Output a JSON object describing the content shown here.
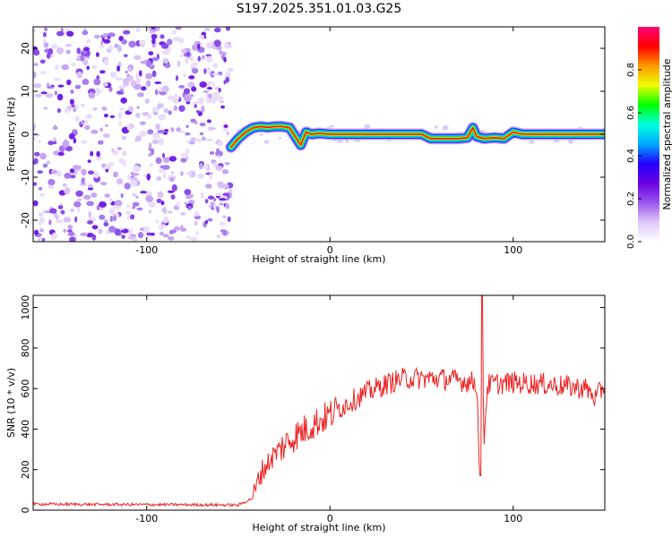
{
  "title": "S197.2025.351.01.03.G25",
  "chart_data": [
    {
      "type": "heatmap",
      "xlabel": "Height of straight line (km)",
      "ylabel": "Frequency (Hz)",
      "xlim": [
        -162,
        150
      ],
      "ylim": [
        -25,
        25
      ],
      "xticks": [
        -100,
        0,
        100
      ],
      "yticks": [
        -20,
        -10,
        0,
        10,
        20
      ],
      "xtick_labels": [
        "-100",
        "0",
        "100"
      ],
      "ytick_labels": [
        "-20",
        "-10",
        "0",
        "10",
        "20"
      ],
      "noise_region_x": [
        -162,
        -54
      ],
      "signal_track": {
        "x": [
          -54,
          -50,
          -46,
          -42,
          -38,
          -34,
          -30,
          -26,
          -22,
          -19,
          -16,
          -13,
          -10,
          -6,
          0,
          20,
          40,
          50,
          55,
          70,
          75,
          78,
          80,
          84,
          90,
          95,
          100,
          105,
          120,
          150
        ],
        "freq": [
          -3,
          -1,
          0.5,
          1.5,
          1.8,
          1.6,
          1.8,
          1.8,
          1.5,
          -0.5,
          -2.5,
          0.5,
          0,
          0.2,
          0,
          0,
          0,
          0,
          -1,
          -1,
          -0.8,
          1.5,
          -0.5,
          -1,
          -0.8,
          -1,
          0.5,
          0,
          0,
          0
        ]
      },
      "colorbar": {
        "label": "Normalized spectral amplitude",
        "range": [
          0,
          1
        ],
        "ticks": [
          "0.0",
          "0.2",
          "0.4",
          "0.6",
          "0.8"
        ],
        "colors": [
          "#ffffff",
          "#e0c8f8",
          "#9955ee",
          "#6a00e0",
          "#2200ff",
          "#00aaff",
          "#00ffdd",
          "#00ff00",
          "#eeff00",
          "#ff9900",
          "#ff0000",
          "#ff0077"
        ]
      }
    },
    {
      "type": "line",
      "xlabel": "Height of straight line (km)",
      "ylabel": "SNR (10 * v/v)",
      "xlim": [
        -162,
        150
      ],
      "ylim": [
        0,
        1060
      ],
      "xticks": [
        -100,
        0,
        100
      ],
      "yticks": [
        0,
        200,
        400,
        600,
        800,
        1000
      ],
      "xtick_labels": [
        "-100",
        "0",
        "100"
      ],
      "ytick_labels": [
        "0",
        "200",
        "400",
        "600",
        "800",
        "1000"
      ],
      "color": "#ee2222",
      "series": [
        {
          "name": "SNR",
          "x": [
            -162,
            -120,
            -80,
            -50,
            -42,
            -38,
            -30,
            -20,
            -10,
            0,
            10,
            20,
            30,
            40,
            60,
            80,
            82,
            83,
            84,
            86,
            100,
            120,
            140,
            145,
            150
          ],
          "values": [
            30,
            28,
            27,
            25,
            60,
            180,
            280,
            360,
            420,
            470,
            530,
            580,
            620,
            650,
            650,
            630,
            180,
            1060,
            350,
            620,
            630,
            620,
            600,
            550,
            620
          ]
        }
      ]
    }
  ]
}
